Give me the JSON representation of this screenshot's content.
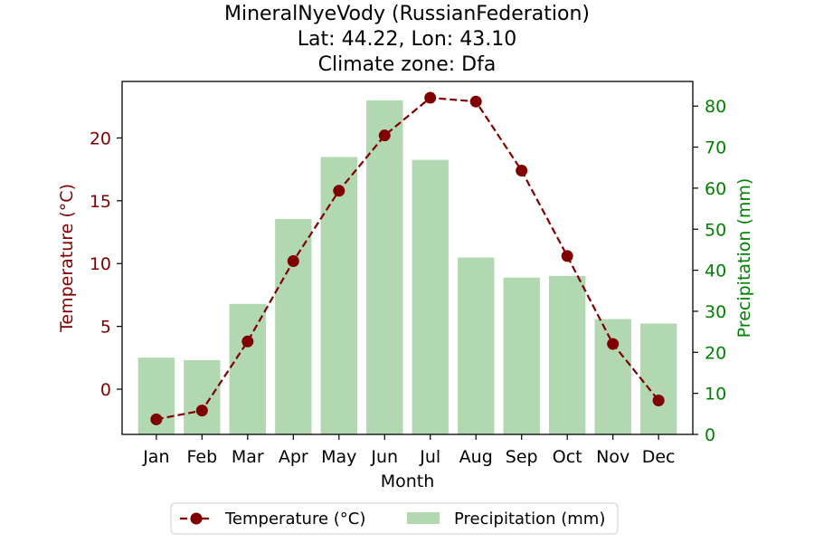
{
  "chart_data": {
    "type": "bar+line",
    "title": [
      "MineralNyeVody (RussianFederation)",
      "Lat: 44.22, Lon: 43.10",
      "Climate zone: Dfa"
    ],
    "xlabel": "Month",
    "ylabel_left": "Temperature (°C)",
    "ylabel_right": "Precipitation (mm)",
    "categories": [
      "Jan",
      "Feb",
      "Mar",
      "Apr",
      "May",
      "Jun",
      "Jul",
      "Aug",
      "Sep",
      "Oct",
      "Nov",
      "Dec"
    ],
    "series": [
      {
        "name": "Temperature (°C)",
        "type": "line",
        "axis": "left",
        "values": [
          -2.4,
          -1.7,
          3.8,
          10.2,
          15.8,
          20.2,
          23.2,
          22.9,
          17.4,
          10.6,
          3.6,
          -0.9
        ]
      },
      {
        "name": "Precipitation (mm)",
        "type": "bar",
        "axis": "right",
        "values": [
          18.7,
          18.1,
          31.8,
          52.5,
          67.6,
          81.4,
          66.9,
          43.1,
          38.2,
          38.6,
          28.1,
          27.0
        ]
      }
    ],
    "ylim_left": [
      -3.6,
      24.5
    ],
    "ylim_right": [
      0,
      86
    ],
    "yticks_left": [
      0,
      5,
      10,
      15,
      20
    ],
    "yticks_right": [
      0,
      10,
      20,
      30,
      40,
      50,
      60,
      70,
      80
    ],
    "legend_position": "bottom-center",
    "colors": {
      "temperature": "#800000",
      "precipitation": "#b2d8b2",
      "left_axis": "#800000",
      "right_axis": "#008000",
      "text": "#000000"
    }
  }
}
